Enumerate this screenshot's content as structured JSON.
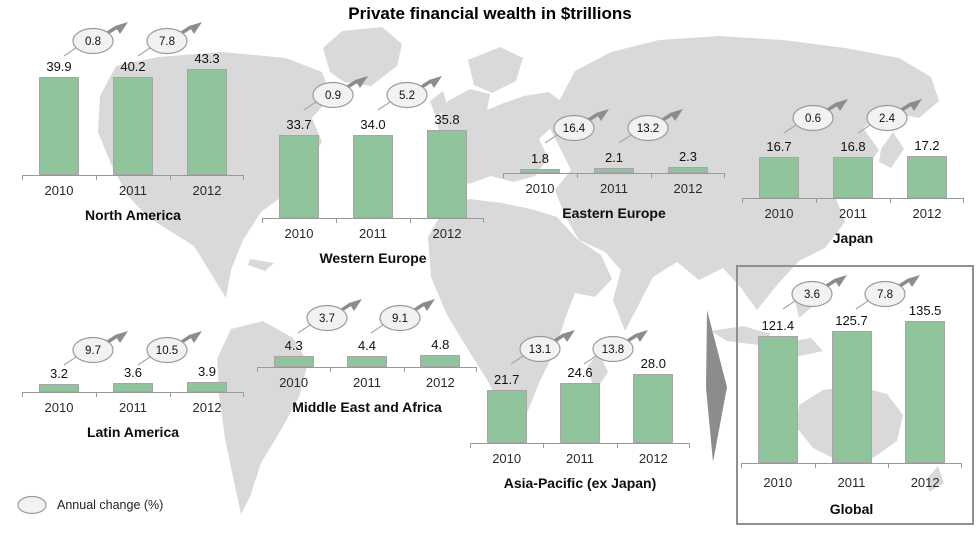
{
  "title": "Private financial wealth in $trillions",
  "legend": {
    "label": "Annual change (%)"
  },
  "colors": {
    "bar": "#8fc49d",
    "bar_border": "#a6a6a6",
    "axis": "#999999",
    "map_land": "#d9d9d9",
    "annotation_arrow": "#8c8c8c",
    "oval_fill": "#f2f2f2",
    "oval_border": "#9a9a9a",
    "global_box_border": "#8f8f8f"
  },
  "chart_data": {
    "type": "bar",
    "title": "Private financial wealth in $trillions",
    "unit": "$trillions",
    "categories": [
      "2010",
      "2011",
      "2012"
    ],
    "annotation_legend": "Annual change (%)",
    "charts": [
      {
        "name": "North America",
        "values": [
          39.9,
          40.2,
          43.3
        ],
        "annual_change_pct": [
          0.8,
          7.8
        ]
      },
      {
        "name": "Western Europe",
        "values": [
          33.7,
          34.0,
          35.8
        ],
        "annual_change_pct": [
          0.9,
          5.2
        ]
      },
      {
        "name": "Eastern Europe",
        "values": [
          1.8,
          2.1,
          2.3
        ],
        "annual_change_pct": [
          16.4,
          13.2
        ]
      },
      {
        "name": "Japan",
        "values": [
          16.7,
          16.8,
          17.2
        ],
        "annual_change_pct": [
          0.6,
          2.4
        ]
      },
      {
        "name": "Latin America",
        "values": [
          3.2,
          3.6,
          3.9
        ],
        "annual_change_pct": [
          9.7,
          10.5
        ]
      },
      {
        "name": "Middle East and Africa",
        "values": [
          4.3,
          4.4,
          4.8
        ],
        "annual_change_pct": [
          3.7,
          9.1
        ]
      },
      {
        "name": "Asia-Pacific (ex Japan)",
        "values": [
          21.7,
          24.6,
          28.0
        ],
        "annual_change_pct": [
          13.1,
          13.8
        ]
      },
      {
        "name": "Global",
        "values": [
          121.4,
          125.7,
          135.5
        ],
        "annual_change_pct": [
          3.6,
          7.8
        ],
        "highlighted": true
      }
    ]
  }
}
